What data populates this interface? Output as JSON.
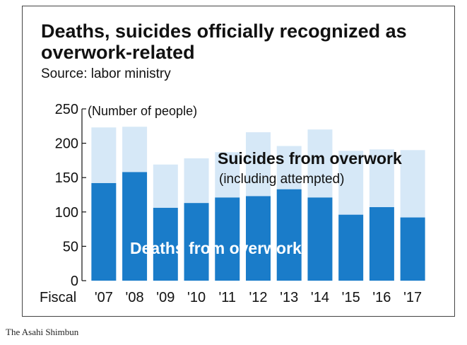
{
  "chart_data": {
    "type": "bar",
    "title_line1": "Deaths, suicides officially recognized as",
    "title_line2": "overwork-related",
    "subtitle": "Source: labor ministry",
    "unit_label": "(Number of people)",
    "x_prefix": "Fiscal",
    "categories": [
      "'07",
      "'08",
      "'09",
      "'10",
      "'11",
      "'12",
      "'13",
      "'14",
      "'15",
      "'16",
      "'17"
    ],
    "series": [
      {
        "name": "Deaths from overwork",
        "values": [
          142,
          158,
          106,
          113,
          121,
          123,
          133,
          121,
          96,
          107,
          92
        ],
        "color": "#1a7cc9"
      },
      {
        "name": "Suicides from overwork",
        "values": [
          81,
          66,
          63,
          65,
          66,
          93,
          63,
          99,
          93,
          84,
          98
        ],
        "color": "#d6e8f7"
      }
    ],
    "stacked": true,
    "ylim": [
      0,
      250
    ],
    "yticks": [
      0,
      50,
      100,
      150,
      200,
      250
    ],
    "annotations": {
      "suicides_label": "Suicides from overwork",
      "suicides_sublabel": "(including attempted)",
      "deaths_label": "Deaths from overwork"
    },
    "grid": false
  },
  "credit": "The Asahi Shimbun"
}
